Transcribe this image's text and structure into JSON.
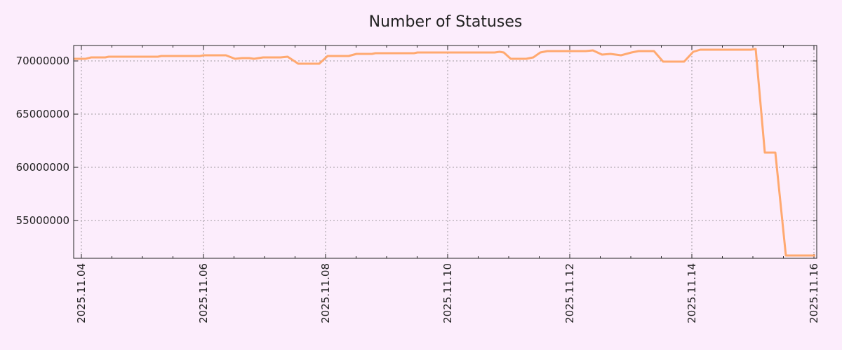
{
  "chart_data": {
    "type": "line",
    "title": "Number of Statuses",
    "xlabel": "",
    "ylabel": "",
    "x_unit": "days since 2025.11.04",
    "xlim": [
      -0.126,
      12.046
    ],
    "ylim": [
      51450000,
      71450000
    ],
    "grid": true,
    "x_ticks": [
      {
        "value": 0,
        "label": "2025.11.04"
      },
      {
        "value": 2,
        "label": "2025.11.06"
      },
      {
        "value": 4,
        "label": "2025.11.08"
      },
      {
        "value": 6,
        "label": "2025.11.10"
      },
      {
        "value": 8,
        "label": "2025.11.12"
      },
      {
        "value": 10,
        "label": "2025.11.14"
      },
      {
        "value": 12,
        "label": "2025.11.16"
      }
    ],
    "y_ticks": [
      {
        "value": 55000000,
        "label": "55000000"
      },
      {
        "value": 60000000,
        "label": "60000000"
      },
      {
        "value": 65000000,
        "label": "65000000"
      },
      {
        "value": 70000000,
        "label": "70000000"
      }
    ],
    "colors": {
      "background": "#fcedfc",
      "line": "#ffa970",
      "grid": "#a09aa0",
      "axis": "#222222"
    },
    "series": [
      {
        "name": "Number of Statuses",
        "x": [
          -0.126,
          0.069,
          0.161,
          0.391,
          0.448,
          1.253,
          1.31,
          1.943,
          2.0,
          2.368,
          2.517,
          2.632,
          2.747,
          2.828,
          2.977,
          3.264,
          3.379,
          3.552,
          3.897,
          4.034,
          4.379,
          4.506,
          4.759,
          4.816,
          5.448,
          5.506,
          6.77,
          6.851,
          6.92,
          7.034,
          7.287,
          7.402,
          7.517,
          7.632,
          8.264,
          8.379,
          8.529,
          8.667,
          8.839,
          9.011,
          9.126,
          9.379,
          9.529,
          9.874,
          10.023,
          10.138,
          10.966,
          11.046,
          11.195,
          11.368,
          11.54,
          12.023
        ],
        "values": [
          70197000,
          70197000,
          70329000,
          70329000,
          70395000,
          70395000,
          70461000,
          70461000,
          70526000,
          70526000,
          70197000,
          70263000,
          70263000,
          70197000,
          70329000,
          70329000,
          70395000,
          69737000,
          69737000,
          70461000,
          70461000,
          70658000,
          70658000,
          70724000,
          70724000,
          70789000,
          70789000,
          70855000,
          70789000,
          70197000,
          70197000,
          70329000,
          70789000,
          70921000,
          70921000,
          70987000,
          70592000,
          70658000,
          70526000,
          70789000,
          70921000,
          70921000,
          69934000,
          69934000,
          70855000,
          71053000,
          71053000,
          71118000,
          61382000,
          61382000,
          51711000,
          51711000
        ]
      }
    ]
  }
}
